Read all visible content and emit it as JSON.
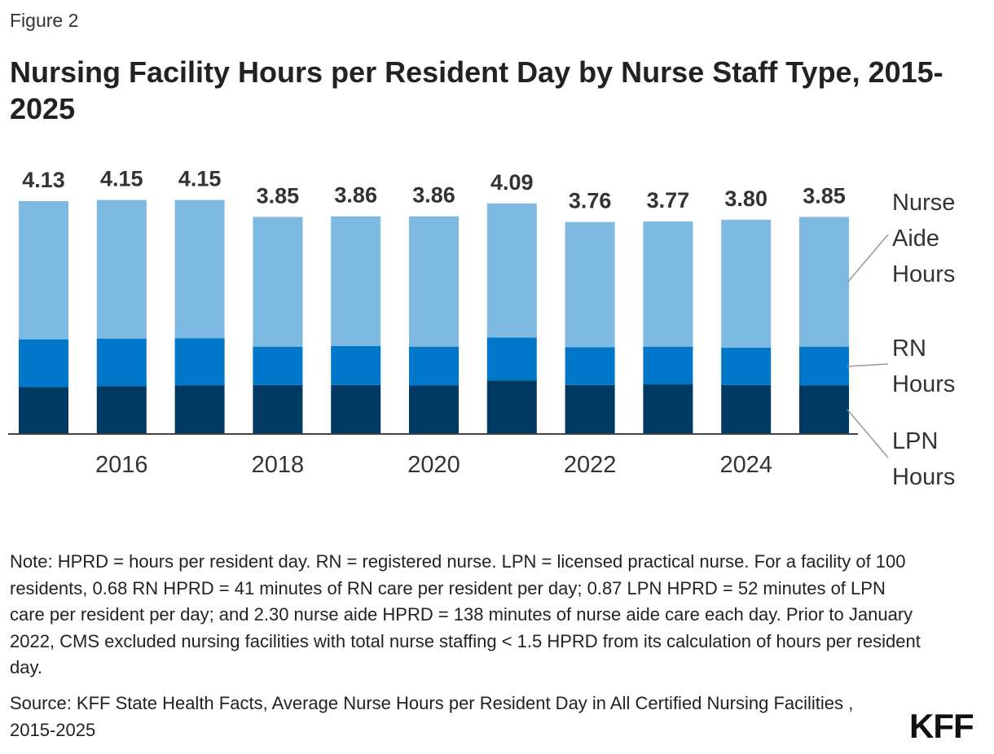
{
  "figure_label": "Figure 2",
  "title": "Nursing Facility Hours per Resident Day by Nurse Staff Type, 2015-2025",
  "note": "Note: HPRD = hours per resident day. RN = registered nurse. LPN = licensed practical nurse. For a facility of 100 residents, 0.68 RN HPRD = 41 minutes of RN care per resident per day; 0.87 LPN HPRD = 52 minutes of LPN care per resident per day; and 2.30 nurse aide HPRD = 138 minutes of nurse aide care each day. Prior to January 2022, CMS excluded nursing facilities with total nurse staffing < 1.5 HPRD from its calculation of hours per resident day.",
  "source": "Source: KFF State Health Facts, Average Nurse Hours per Resident Day in All Certified Nursing Facilities , 2015-2025",
  "logo": "KFF",
  "chart_data": {
    "type": "bar",
    "stacked": true,
    "categories": [
      "2015",
      "2016",
      "2017",
      "2018",
      "2019",
      "2020",
      "2021",
      "2022",
      "2023",
      "2024",
      "2025"
    ],
    "x_tick_labels": [
      "2016",
      "2018",
      "2020",
      "2022",
      "2024"
    ],
    "totals": [
      "4.13",
      "4.15",
      "4.15",
      "3.85",
      "3.86",
      "3.86",
      "4.09",
      "3.76",
      "3.77",
      "3.80",
      "3.85"
    ],
    "series": [
      {
        "name": "LPN Hours",
        "color": "#003a63",
        "values": [
          0.83,
          0.85,
          0.86,
          0.87,
          0.87,
          0.86,
          0.95,
          0.87,
          0.88,
          0.87,
          0.86
        ]
      },
      {
        "name": "RN Hours",
        "color": "#0077c8",
        "values": [
          0.85,
          0.84,
          0.84,
          0.68,
          0.69,
          0.69,
          0.76,
          0.67,
          0.67,
          0.66,
          0.69
        ]
      },
      {
        "name": "Nurse Aide Hours",
        "color": "#7db9e1",
        "values": [
          2.45,
          2.46,
          2.45,
          2.3,
          2.3,
          2.31,
          2.38,
          2.22,
          2.22,
          2.27,
          2.3
        ]
      }
    ],
    "legend_labels": [
      {
        "series": "Nurse Aide Hours",
        "lines": [
          "Nurse",
          "Aide",
          "Hours"
        ]
      },
      {
        "series": "RN Hours",
        "lines": [
          "RN",
          "Hours"
        ]
      },
      {
        "series": "LPN Hours",
        "lines": [
          "LPN",
          "Hours"
        ]
      }
    ],
    "legend_placement": "right, direct labels",
    "grid": false,
    "ylim": [
      0,
      4.13
    ]
  }
}
